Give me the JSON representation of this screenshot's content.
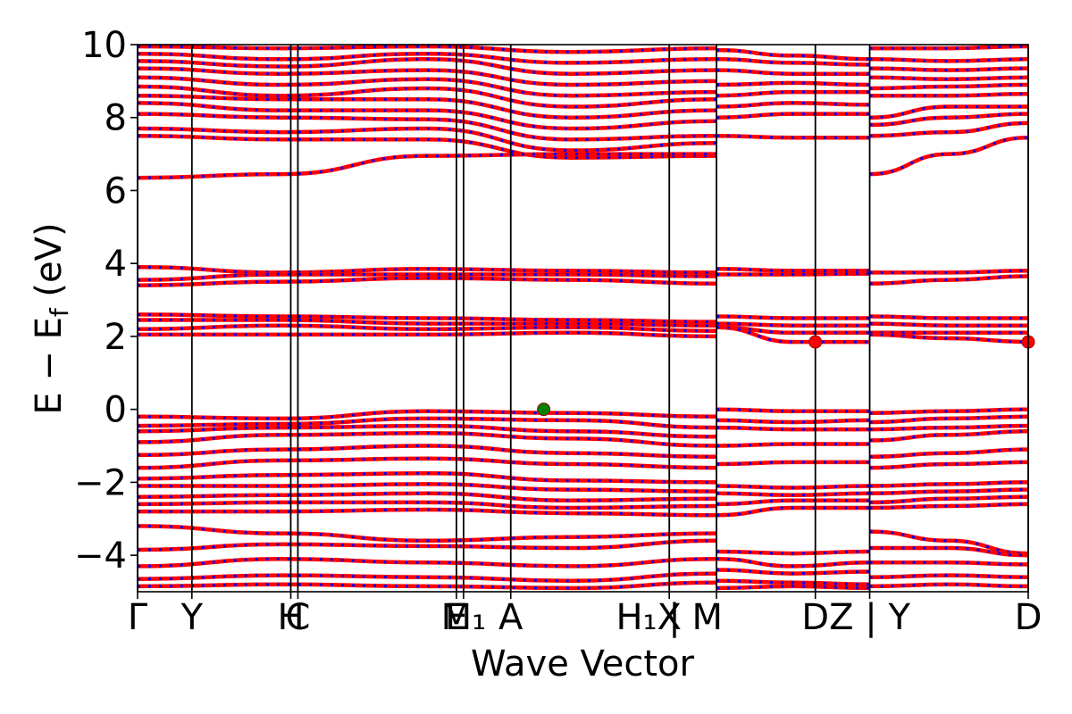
{
  "chart_data": {
    "type": "line",
    "xlabel": "Wave Vector",
    "ylabel": "E − E",
    "ylabel_sub": "f",
    "ylabel_unit": " (eV)",
    "ylim": [
      -5,
      10
    ],
    "yticks": [
      -4,
      -2,
      0,
      2,
      4,
      6,
      8,
      10
    ],
    "ytick_labels": [
      "−4",
      "−2",
      "0",
      "2",
      "4",
      "6",
      "8",
      "10"
    ],
    "xlim": [
      0,
      1
    ],
    "kpath_ticks": [
      {
        "x": 0.0,
        "label": "Γ"
      },
      {
        "x": 0.061,
        "label": "Y"
      },
      {
        "x": 0.172,
        "label": "H"
      },
      {
        "x": 0.18,
        "label": "C"
      },
      {
        "x": 0.358,
        "label": "E"
      },
      {
        "x": 0.366,
        "label": "M₁"
      },
      {
        "x": 0.419,
        "label": "A"
      },
      {
        "x": 0.597,
        "label": "X"
      },
      {
        "x": 0.597,
        "label": "H₁ | M"
      },
      {
        "x": 0.65,
        "label": ""
      },
      {
        "x": 0.761,
        "label": "D"
      },
      {
        "x": 0.822,
        "label": "Z | Y"
      },
      {
        "x": 1.0,
        "label": "D"
      }
    ],
    "vertical_lines": [
      0.0,
      0.061,
      0.172,
      0.18,
      0.358,
      0.366,
      0.419,
      0.597,
      0.65,
      0.761,
      0.822,
      1.0
    ],
    "segments": [
      {
        "x_range": [
          0.0,
          0.65
        ],
        "bands": [
          [
            9.95,
            9.9,
            9.95,
            9.8,
            9.9
          ],
          [
            9.75,
            9.6,
            9.75,
            9.5,
            9.6
          ],
          [
            9.55,
            9.4,
            9.6,
            9.2,
            9.3
          ],
          [
            9.35,
            9.2,
            9.3,
            8.9,
            9.0
          ],
          [
            9.1,
            8.9,
            9.05,
            8.6,
            8.7
          ],
          [
            8.85,
            8.6,
            8.8,
            8.3,
            8.5
          ],
          [
            8.6,
            8.5,
            8.5,
            8.0,
            8.2
          ],
          [
            8.4,
            8.2,
            8.2,
            7.7,
            7.9
          ],
          [
            8.1,
            8.0,
            7.95,
            7.4,
            7.5
          ],
          [
            7.7,
            7.6,
            7.7,
            7.1,
            7.3
          ],
          [
            7.5,
            7.4,
            7.4,
            6.9,
            6.95
          ],
          [
            6.35,
            6.45,
            6.95,
            7.0,
            7.0
          ],
          [
            3.9,
            3.75,
            3.85,
            3.8,
            3.75
          ],
          [
            3.55,
            3.7,
            3.7,
            3.7,
            3.65
          ],
          [
            3.4,
            3.5,
            3.6,
            3.55,
            3.45
          ],
          [
            2.6,
            2.55,
            2.5,
            2.45,
            2.4
          ],
          [
            2.45,
            2.45,
            2.35,
            2.35,
            2.3
          ],
          [
            2.2,
            2.3,
            2.2,
            2.25,
            2.15
          ],
          [
            2.05,
            2.05,
            2.05,
            2.1,
            2.0
          ],
          [
            -0.2,
            -0.25,
            -0.05,
            -0.1,
            -0.2
          ],
          [
            -0.45,
            -0.4,
            -0.25,
            -0.3,
            -0.5
          ],
          [
            -0.6,
            -0.5,
            -0.45,
            -0.6,
            -0.75
          ],
          [
            -0.9,
            -0.7,
            -0.65,
            -0.8,
            -1.0
          ],
          [
            -1.25,
            -1.1,
            -1.0,
            -1.2,
            -1.3
          ],
          [
            -1.6,
            -1.4,
            -1.35,
            -1.5,
            -1.6
          ],
          [
            -1.9,
            -1.8,
            -1.75,
            -1.95,
            -2.0
          ],
          [
            -2.1,
            -2.1,
            -2.05,
            -2.2,
            -2.25
          ],
          [
            -2.4,
            -2.35,
            -2.3,
            -2.5,
            -2.45
          ],
          [
            -2.6,
            -2.55,
            -2.55,
            -2.7,
            -2.65
          ],
          [
            -2.8,
            -2.8,
            -2.75,
            -2.85,
            -2.9
          ],
          [
            -3.2,
            -3.4,
            -3.6,
            -3.5,
            -3.4
          ],
          [
            -3.85,
            -3.7,
            -3.75,
            -3.8,
            -3.6
          ],
          [
            -4.3,
            -4.1,
            -4.2,
            -4.3,
            -4.1
          ],
          [
            -4.65,
            -4.55,
            -4.6,
            -4.7,
            -4.5
          ],
          [
            -4.85,
            -4.8,
            -4.85,
            -4.9,
            -4.75
          ]
        ]
      },
      {
        "x_range": [
          0.65,
          0.822
        ],
        "bands": [
          [
            9.85,
            9.7,
            9.6
          ],
          [
            9.6,
            9.5,
            9.45
          ],
          [
            9.3,
            9.2,
            9.2
          ],
          [
            8.9,
            8.95,
            8.9
          ],
          [
            8.6,
            8.7,
            8.7
          ],
          [
            8.3,
            8.4,
            8.35
          ],
          [
            8.0,
            8.1,
            8.1
          ],
          [
            7.5,
            7.45,
            7.45
          ],
          [
            3.85,
            3.8,
            3.8
          ],
          [
            3.7,
            3.7,
            3.72
          ],
          [
            2.55,
            2.5,
            2.5
          ],
          [
            2.35,
            2.3,
            2.3
          ],
          [
            2.25,
            2.1,
            2.1
          ],
          [
            2.25,
            1.85,
            1.85
          ],
          [
            0.0,
            -0.05,
            -0.05
          ],
          [
            -0.3,
            -0.35,
            -0.3
          ],
          [
            -0.5,
            -0.55,
            -0.55
          ],
          [
            -1.0,
            -0.95,
            -0.95
          ],
          [
            -1.5,
            -1.45,
            -1.45
          ],
          [
            -2.1,
            -2.15,
            -2.1
          ],
          [
            -2.3,
            -2.35,
            -2.3
          ],
          [
            -2.6,
            -2.5,
            -2.5
          ],
          [
            -2.9,
            -2.7,
            -2.7
          ],
          [
            -3.9,
            -3.95,
            -3.9
          ],
          [
            -4.1,
            -4.3,
            -4.2
          ],
          [
            -4.4,
            -4.5,
            -4.45
          ],
          [
            -4.7,
            -4.75,
            -4.8
          ],
          [
            -4.9,
            -4.85,
            -4.9
          ]
        ]
      },
      {
        "x_range": [
          0.822,
          1.0
        ],
        "bands": [
          [
            9.9,
            9.9,
            9.95
          ],
          [
            9.6,
            9.55,
            9.6
          ],
          [
            9.35,
            9.3,
            9.35
          ],
          [
            9.1,
            9.05,
            9.1
          ],
          [
            8.8,
            8.85,
            8.9
          ],
          [
            8.6,
            8.6,
            8.65
          ],
          [
            8.0,
            8.3,
            8.3
          ],
          [
            7.8,
            8.0,
            8.1
          ],
          [
            7.5,
            7.6,
            7.85
          ],
          [
            6.45,
            7.0,
            7.45
          ],
          [
            3.75,
            3.75,
            3.8
          ],
          [
            3.45,
            3.55,
            3.65
          ],
          [
            2.55,
            2.5,
            2.5
          ],
          [
            2.35,
            2.3,
            2.3
          ],
          [
            2.1,
            2.1,
            2.1
          ],
          [
            2.05,
            1.95,
            1.85
          ],
          [
            -0.1,
            -0.05,
            0.0
          ],
          [
            -0.35,
            -0.25,
            -0.2
          ],
          [
            -0.55,
            -0.5,
            -0.45
          ],
          [
            -0.85,
            -0.7,
            -0.6
          ],
          [
            -1.3,
            -1.2,
            -1.1
          ],
          [
            -1.6,
            -1.5,
            -1.45
          ],
          [
            -2.1,
            -2.05,
            -2.0
          ],
          [
            -2.3,
            -2.25,
            -2.2
          ],
          [
            -2.55,
            -2.45,
            -2.4
          ],
          [
            -2.7,
            -2.65,
            -2.6
          ],
          [
            -3.35,
            -3.6,
            -3.95
          ],
          [
            -3.8,
            -3.8,
            -4.0
          ],
          [
            -4.2,
            -4.2,
            -4.25
          ],
          [
            -4.6,
            -4.55,
            -4.6
          ],
          [
            -4.85,
            -4.8,
            -4.85
          ]
        ]
      }
    ],
    "markers": [
      {
        "x": 0.456,
        "y": 0.0,
        "color": "#008000"
      },
      {
        "x": 0.761,
        "y": 1.85,
        "color": "#ff0000"
      },
      {
        "x": 1.0,
        "y": 1.85,
        "color": "#ff0000"
      }
    ],
    "colors": {
      "band_primary": "#ff0000",
      "band_secondary": "#0000ff",
      "vbm_marker": "#008000",
      "cbm_marker": "#ff0000",
      "axis": "#000000"
    },
    "grid": false,
    "legend": "none"
  }
}
